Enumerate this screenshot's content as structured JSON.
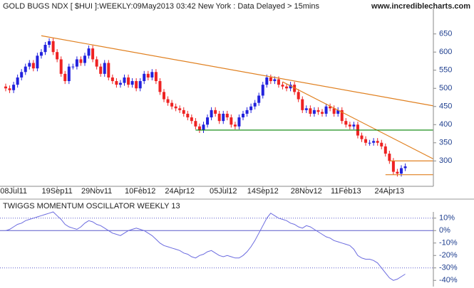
{
  "chart_data": [
    {
      "type": "candlestick",
      "title": "GOLD BUGS NDX [ $HUI ]:WEEKLY:09May2013 03:42 New York : Data Delayed > 15mins",
      "source": "www.incrediblecharts.com",
      "categories": [
        null,
        null,
        "08Jul11",
        null,
        null,
        null,
        null,
        null,
        null,
        null,
        null,
        null,
        null,
        "19Sep11",
        null,
        null,
        null,
        null,
        null,
        null,
        null,
        null,
        null,
        "29Nov11",
        null,
        null,
        null,
        null,
        null,
        null,
        null,
        null,
        null,
        null,
        "10Feb12",
        null,
        null,
        null,
        null,
        null,
        null,
        null,
        null,
        null,
        "24Apr12",
        null,
        null,
        null,
        null,
        null,
        null,
        null,
        null,
        null,
        null,
        "05Jul12",
        null,
        null,
        null,
        null,
        null,
        null,
        null,
        null,
        null,
        "14Sep12",
        null,
        null,
        null,
        null,
        null,
        null,
        null,
        null,
        null,
        null,
        "28Nov12",
        null,
        null,
        null,
        null,
        null,
        null,
        null,
        null,
        null,
        "11Feb13",
        null,
        null,
        null,
        null,
        null,
        null,
        null,
        null,
        null,
        null,
        "24Apr13",
        null,
        null,
        null,
        null
      ],
      "open": [
        505,
        500,
        495,
        510,
        530,
        545,
        560,
        570,
        555,
        590,
        600,
        620,
        630,
        600,
        580,
        540,
        520,
        560,
        560,
        580,
        570,
        590,
        610,
        580,
        560,
        540,
        570,
        530,
        520,
        510,
        515,
        530,
        510,
        520,
        500,
        520,
        540,
        530,
        545,
        520,
        490,
        470,
        460,
        450,
        445,
        440,
        430,
        420,
        410,
        395,
        385,
        400,
        420,
        440,
        430,
        410,
        430,
        420,
        400,
        395,
        420,
        430,
        440,
        450,
        460,
        480,
        510,
        530,
        520,
        525,
        510,
        505,
        500,
        510,
        490,
        470,
        440,
        445,
        430,
        440,
        435,
        430,
        450,
        445,
        430,
        440,
        410,
        400,
        395,
        400,
        370,
        360,
        350,
        350,
        355,
        350,
        340,
        320,
        300,
        270,
        265,
        280
      ],
      "high": [
        513,
        508,
        518,
        538,
        553,
        568,
        578,
        578,
        598,
        608,
        628,
        638,
        638,
        608,
        588,
        548,
        568,
        568,
        588,
        588,
        598,
        618,
        618,
        588,
        568,
        578,
        578,
        538,
        528,
        523,
        538,
        538,
        528,
        528,
        528,
        548,
        548,
        553,
        553,
        528,
        498,
        478,
        468,
        458,
        453,
        448,
        438,
        428,
        418,
        403,
        408,
        428,
        448,
        448,
        438,
        438,
        438,
        428,
        408,
        428,
        438,
        448,
        458,
        468,
        488,
        518,
        538,
        538,
        533,
        533,
        518,
        513,
        518,
        518,
        498,
        478,
        453,
        453,
        448,
        448,
        443,
        458,
        458,
        453,
        448,
        448,
        418,
        408,
        408,
        408,
        378,
        368,
        358,
        363,
        363,
        358,
        348,
        328,
        308,
        278,
        288,
        293
      ],
      "low": [
        492,
        487,
        487,
        502,
        522,
        537,
        552,
        547,
        547,
        582,
        592,
        612,
        592,
        572,
        532,
        512,
        512,
        552,
        552,
        562,
        562,
        582,
        572,
        552,
        532,
        532,
        522,
        512,
        502,
        502,
        507,
        502,
        502,
        492,
        492,
        512,
        522,
        522,
        512,
        482,
        462,
        452,
        442,
        437,
        432,
        422,
        412,
        402,
        387,
        377,
        377,
        392,
        412,
        422,
        402,
        402,
        412,
        392,
        387,
        387,
        412,
        422,
        432,
        442,
        452,
        472,
        502,
        512,
        512,
        502,
        497,
        492,
        492,
        482,
        462,
        432,
        432,
        422,
        422,
        427,
        422,
        422,
        437,
        422,
        422,
        402,
        392,
        387,
        387,
        362,
        352,
        342,
        342,
        342,
        342,
        332,
        312,
        292,
        262,
        257,
        257,
        272
      ],
      "close": [
        500,
        495,
        510,
        530,
        545,
        560,
        570,
        555,
        590,
        600,
        620,
        630,
        600,
        580,
        540,
        520,
        560,
        560,
        580,
        570,
        590,
        610,
        580,
        560,
        540,
        570,
        530,
        520,
        510,
        515,
        530,
        510,
        520,
        500,
        520,
        540,
        530,
        545,
        520,
        490,
        470,
        460,
        450,
        445,
        440,
        430,
        420,
        410,
        395,
        385,
        400,
        420,
        440,
        430,
        410,
        430,
        420,
        400,
        395,
        420,
        430,
        440,
        450,
        460,
        480,
        510,
        530,
        520,
        525,
        510,
        505,
        500,
        510,
        490,
        470,
        440,
        445,
        430,
        440,
        435,
        430,
        450,
        445,
        430,
        440,
        410,
        400,
        395,
        400,
        370,
        360,
        350,
        350,
        355,
        350,
        340,
        320,
        300,
        270,
        265,
        280,
        285
      ],
      "up_color": "#2222dd",
      "down_color": "#ee2222",
      "ylim": [
        230,
        720
      ],
      "yticks": [
        300,
        350,
        400,
        450,
        500,
        550,
        600,
        650
      ],
      "trendlines": [
        {
          "x": [
            9,
            108
          ],
          "y": [
            645,
            452
          ],
          "color": "#e08020"
        },
        {
          "x": [
            70,
            108
          ],
          "y": [
            518,
            306
          ],
          "color": "#e08020"
        },
        {
          "x": [
            48,
            108
          ],
          "y": [
            385,
            385
          ],
          "color": "#008000"
        },
        {
          "x": [
            97,
            108
          ],
          "y": [
            300,
            300
          ],
          "color": "#e08020"
        },
        {
          "x": [
            96,
            108
          ],
          "y": [
            262,
            262
          ],
          "color": "#e08020"
        }
      ]
    },
    {
      "type": "line",
      "title": "TWIGGS MOMENTUM OSCILLATOR WEEKLY 13",
      "values": [
        0,
        1,
        3,
        5,
        6,
        8,
        9,
        10,
        11,
        12,
        13,
        14,
        15,
        12,
        9,
        5,
        3,
        2,
        1,
        3,
        6,
        8,
        7,
        5,
        4,
        2,
        0,
        -2,
        -3,
        -4,
        -2,
        0,
        1,
        2,
        1,
        0,
        -2,
        -4,
        -7,
        -10,
        -12,
        -13,
        -14,
        -15,
        -16,
        -18,
        -19,
        -21,
        -22,
        -20,
        -19,
        -17,
        -16,
        -18,
        -20,
        -21,
        -20,
        -21,
        -22,
        -22,
        -20,
        -17,
        -13,
        -8,
        -2,
        4,
        10,
        14,
        12,
        10,
        9,
        8,
        6,
        5,
        3,
        2,
        4,
        3,
        1,
        -1,
        -3,
        -5,
        -6,
        -8,
        -9,
        -10,
        -11,
        -12,
        -15,
        -20,
        -22,
        -23,
        -23,
        -24,
        -26,
        -30,
        -34,
        -38,
        -40,
        -39,
        -37,
        -35
      ],
      "color": "#6b6bdf",
      "ylim": [
        -45,
        15
      ],
      "yticks": [
        {
          "value": 10,
          "label": "10%"
        },
        {
          "value": 0,
          "label": "0%"
        },
        {
          "value": -10,
          "label": "-10%"
        },
        {
          "value": -20,
          "label": "-20%"
        },
        {
          "value": -30,
          "label": "-30%"
        },
        {
          "value": -40,
          "label": "-40%"
        }
      ],
      "hlines": [
        10,
        0,
        -30
      ]
    }
  ]
}
